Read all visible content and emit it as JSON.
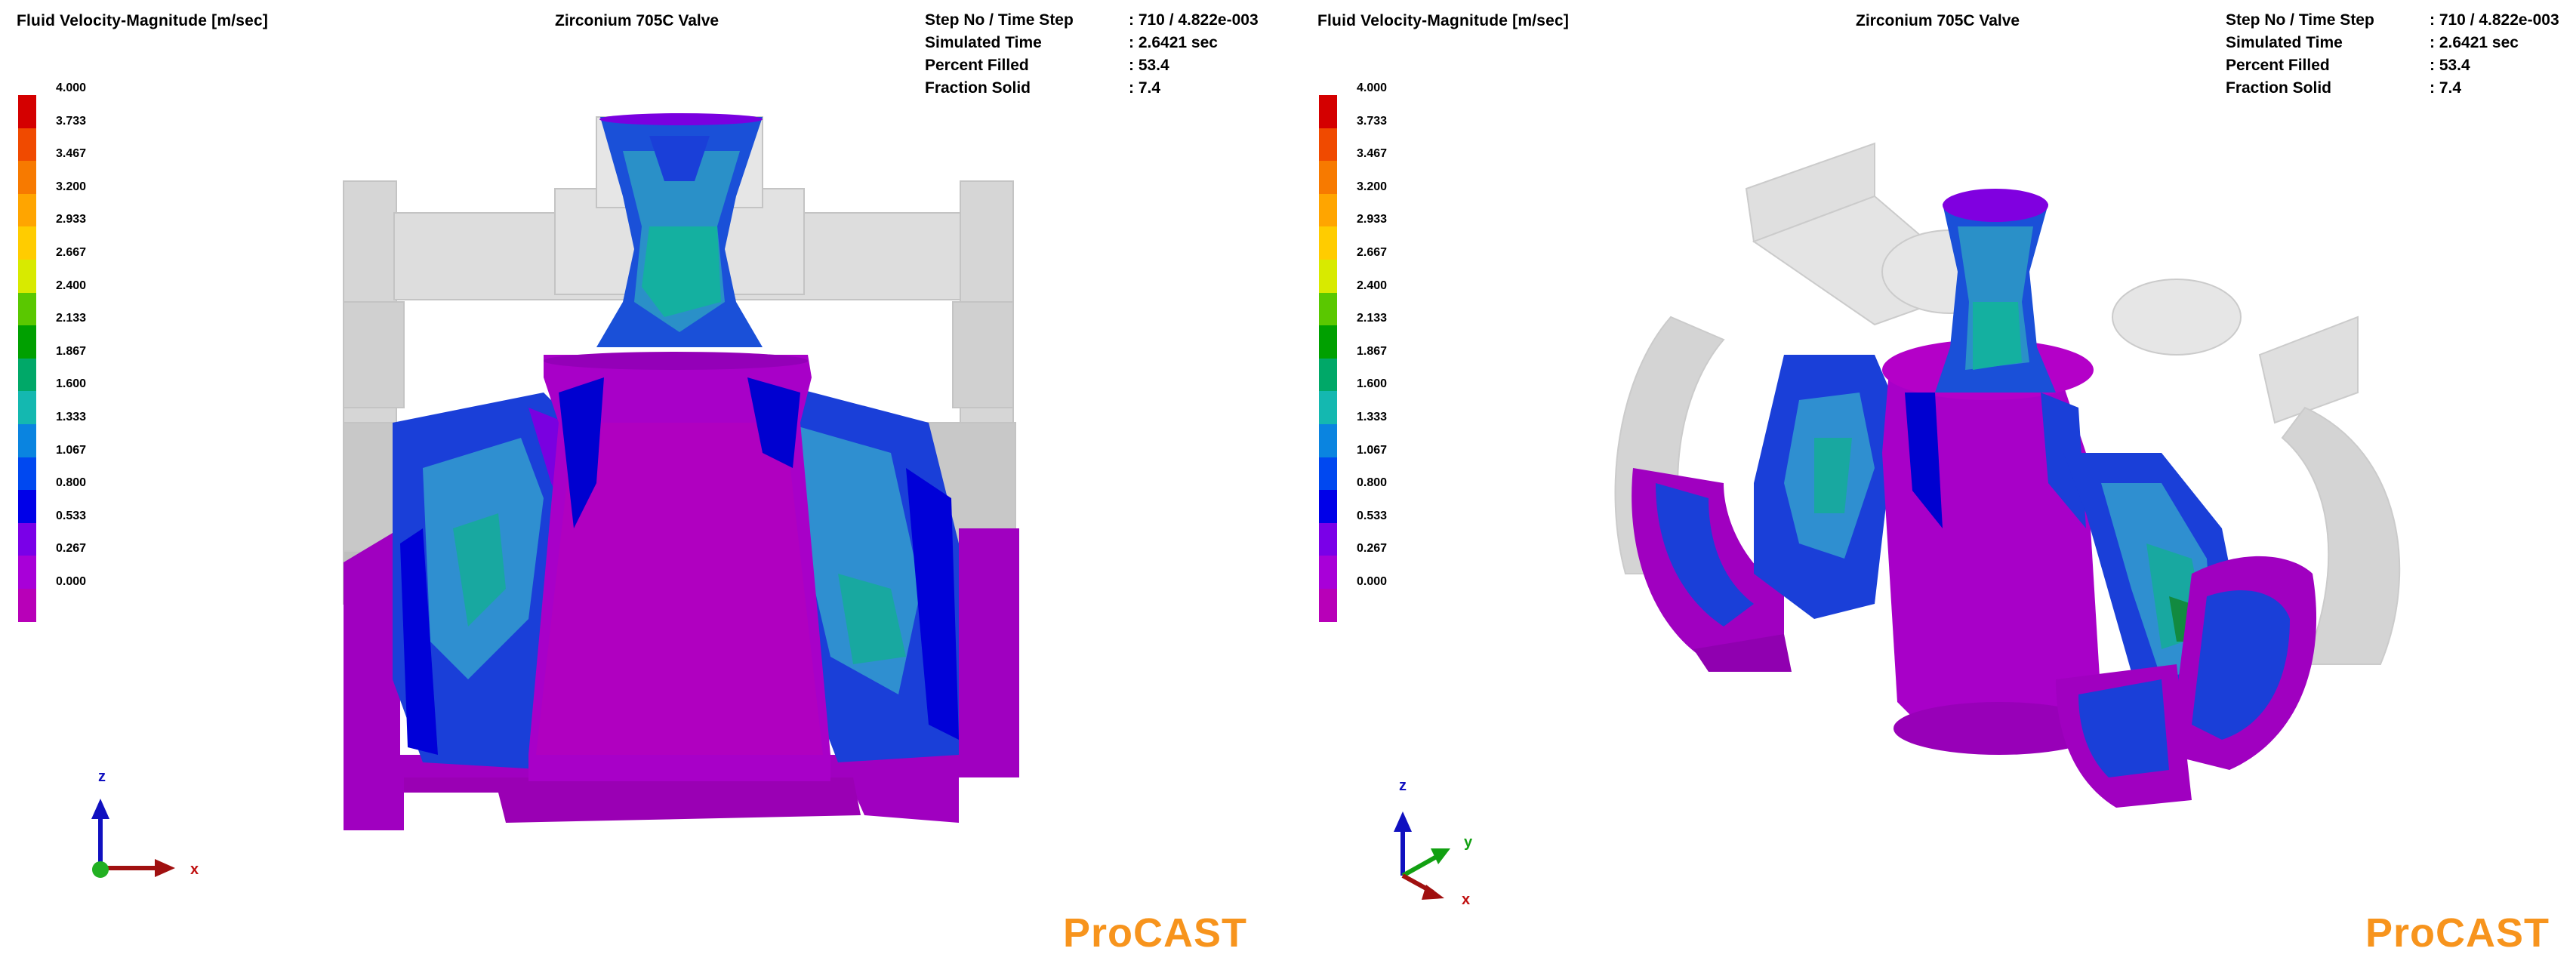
{
  "panels": [
    {
      "variable_title": "Fluid Velocity-Magnitude  [m/sec]",
      "simulation_title": "Zirconium 705C Valve",
      "info": [
        {
          "label": "Step No / Time Step",
          "value": ": 710  /  4.822e-003"
        },
        {
          "label": "Simulated Time",
          "value": ": 2.6421  sec"
        },
        {
          "label": "Percent Filled",
          "value": ": 53.4"
        },
        {
          "label": "Fraction Solid",
          "value": ": 7.4"
        }
      ],
      "axes": {
        "vertical": "z",
        "horizontal": "x"
      },
      "brand": "ProCAST"
    },
    {
      "variable_title": "Fluid Velocity-Magnitude  [m/sec]",
      "simulation_title": "Zirconium 705C Valve",
      "info": [
        {
          "label": "Step No / Time Step",
          "value": ": 710  /  4.822e-003"
        },
        {
          "label": "Simulated Time",
          "value": ": 2.6421  sec"
        },
        {
          "label": "Percent Filled",
          "value": ": 53.4"
        },
        {
          "label": "Fraction Solid",
          "value": ": 7.4"
        }
      ],
      "axes": {
        "vertical": "z",
        "diagonal": "y",
        "depth": "x"
      },
      "brand": "ProCAST"
    }
  ],
  "legend": {
    "ticks": [
      "4.000",
      "3.733",
      "3.467",
      "3.200",
      "2.933",
      "2.667",
      "2.400",
      "2.133",
      "1.867",
      "1.600",
      "1.333",
      "1.067",
      "0.800",
      "0.533",
      "0.267",
      "0.000"
    ],
    "colors": [
      "#d40000",
      "#f04a00",
      "#f77a00",
      "#ffa500",
      "#ffcc00",
      "#d8ea00",
      "#5ac800",
      "#00a000",
      "#00a868",
      "#14b8b0",
      "#0a84e0",
      "#0048f0",
      "#0000e8",
      "#7a00e8",
      "#a800d8",
      "#b800b8"
    ]
  },
  "colors": {
    "brand": "#f7941d",
    "mold_gray": "#d4d4d4",
    "fluid_low": "#a000c8",
    "fluid_mid": "#1a4ad8",
    "fluid_high": "#18a8a0"
  }
}
